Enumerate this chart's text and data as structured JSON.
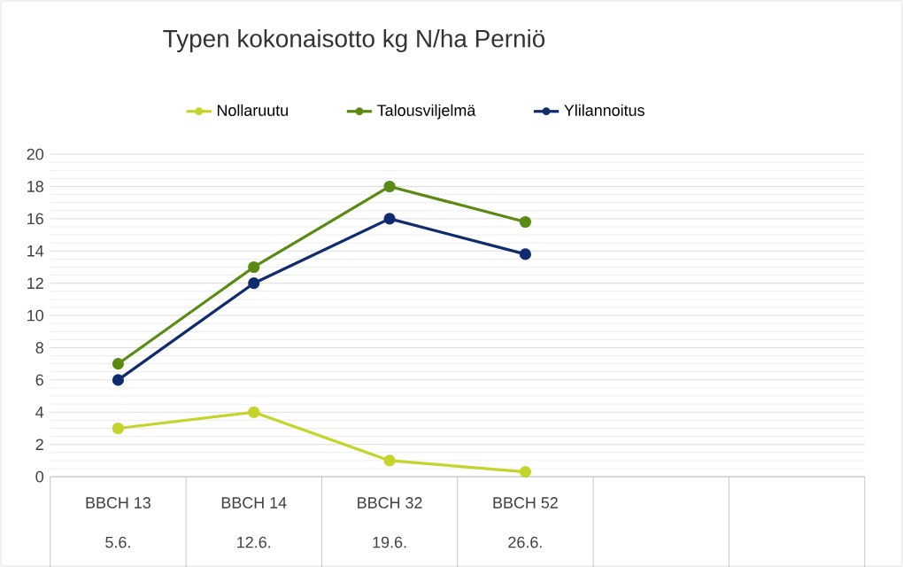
{
  "chart_data": {
    "type": "line",
    "title": "Typen kokonaisotto kg N/ha Perniö",
    "categories": [
      "BBCH 13",
      "BBCH 14",
      "BBCH 32",
      "BBCH 52",
      null,
      null
    ],
    "annotations": [
      "5.6.",
      "12.6.",
      "19.6.",
      "26.6."
    ],
    "series": [
      {
        "name": "Nollaruutu",
        "color": "#c4d42a",
        "values": [
          3,
          4,
          1,
          0.3,
          null,
          null
        ]
      },
      {
        "name": "Talousviljelmä",
        "color": "#5a8a12",
        "values": [
          7,
          13,
          18,
          15.8,
          null,
          null
        ]
      },
      {
        "name": "Ylilannoitus",
        "color": "#0f2c6e",
        "values": [
          6,
          12,
          16,
          13.8,
          null,
          null
        ]
      }
    ],
    "ylim": [
      0,
      20
    ],
    "yticks": [
      0,
      2,
      4,
      6,
      8,
      10,
      12,
      14,
      16,
      18,
      20
    ],
    "grid": "y",
    "legend": "top",
    "marker": "circle",
    "line_style": "solid"
  }
}
